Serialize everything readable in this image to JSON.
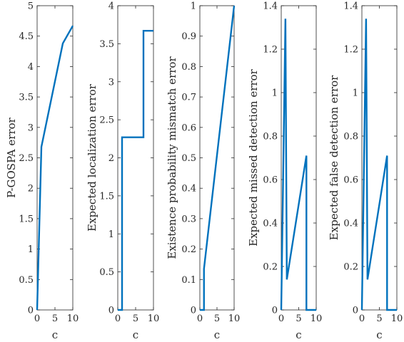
{
  "chart_data": [
    {
      "type": "line",
      "xlabel": "c",
      "ylabel": "P-GOSPA error",
      "xlim": [
        0,
        10
      ],
      "ylim": [
        0,
        5
      ],
      "xticks": [
        "0",
        "5",
        "10"
      ],
      "yticks": [
        "0",
        "0.5",
        "1",
        "1.5",
        "2",
        "2.5",
        "3",
        "3.5",
        "4",
        "4.5",
        "5"
      ],
      "x": [
        0,
        1.2,
        7.2,
        10
      ],
      "y": [
        0,
        2.68,
        4.38,
        4.67
      ],
      "color": "#0072BD"
    },
    {
      "type": "line",
      "xlabel": "c",
      "ylabel": "Expected localization error",
      "xlim": [
        0,
        10
      ],
      "ylim": [
        0,
        4
      ],
      "xticks": [
        "0",
        "5",
        "10"
      ],
      "yticks": [
        "0",
        "0.5",
        "1",
        "1.5",
        "2",
        "2.5",
        "3",
        "3.5",
        "4"
      ],
      "x": [
        0,
        1.2,
        1.2,
        7.2,
        7.2,
        10
      ],
      "y": [
        0,
        0,
        2.27,
        2.27,
        3.67,
        3.67
      ],
      "color": "#0072BD"
    },
    {
      "type": "line",
      "xlabel": "c",
      "ylabel": "Existence probability mismatch error",
      "xlim": [
        0,
        10
      ],
      "ylim": [
        0,
        1
      ],
      "xticks": [
        "0",
        "5",
        "10"
      ],
      "yticks": [
        "0",
        "0.1",
        "0.2",
        "0.3",
        "0.4",
        "0.5",
        "0.6",
        "0.7",
        "0.8",
        "0.9",
        "1"
      ],
      "x": [
        0,
        1.2,
        1.2,
        10
      ],
      "y": [
        0,
        0,
        0.135,
        1.0
      ],
      "color": "#0072BD"
    },
    {
      "type": "line",
      "xlabel": "c",
      "ylabel": "Expected missed detection error",
      "xlim": [
        0,
        10
      ],
      "ylim": [
        0,
        1.4
      ],
      "xticks": [
        "0",
        "5",
        "10"
      ],
      "yticks": [
        "0",
        "0.2",
        "0.4",
        "0.6",
        "0.8",
        "1",
        "1.2",
        "1.4"
      ],
      "x": [
        0,
        1.2,
        1.6,
        7.2,
        7.2,
        10
      ],
      "y": [
        0,
        1.34,
        0.14,
        0.71,
        0,
        0
      ],
      "color": "#0072BD"
    },
    {
      "type": "line",
      "xlabel": "c",
      "ylabel": "Expected false detection error",
      "xlim": [
        0,
        10
      ],
      "ylim": [
        0,
        1.4
      ],
      "xticks": [
        "0",
        "5",
        "10"
      ],
      "yticks": [
        "0",
        "0.2",
        "0.4",
        "0.6",
        "0.8",
        "1",
        "1.2",
        "1.4"
      ],
      "x": [
        0,
        1.2,
        1.6,
        7.2,
        7.2,
        10
      ],
      "y": [
        0,
        1.34,
        0.14,
        0.71,
        0,
        0
      ],
      "color": "#0072BD"
    }
  ]
}
